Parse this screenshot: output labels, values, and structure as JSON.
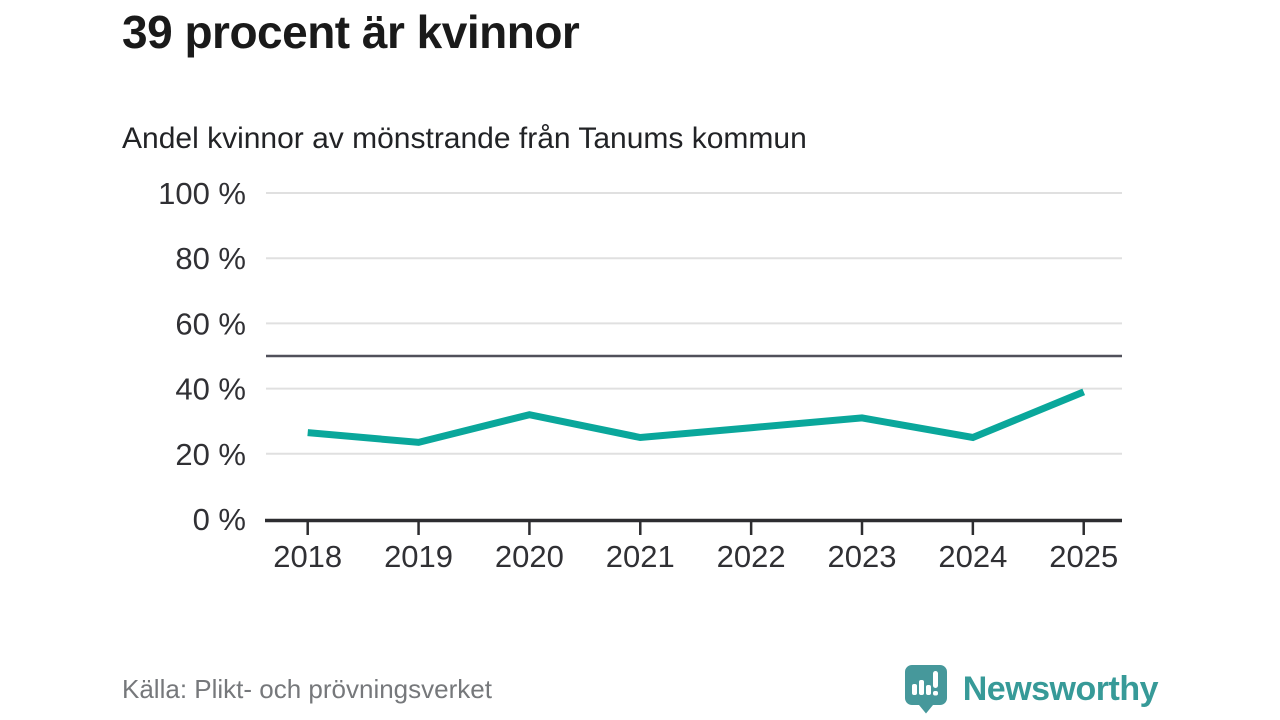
{
  "header": {
    "title": "39 procent är kvinnor",
    "subtitle": "Andel kvinnor av mönstrande från Tanums kommun"
  },
  "chart_data": {
    "type": "line",
    "title": "39 procent är kvinnor",
    "subtitle": "Andel kvinnor av mönstrande från Tanums kommun",
    "categories": [
      "2018",
      "2019",
      "2020",
      "2021",
      "2022",
      "2023",
      "2024",
      "2025"
    ],
    "series": [
      {
        "name": "Andel kvinnor av mönstrande",
        "values": [
          26.5,
          23.5,
          32,
          25,
          28,
          31,
          25,
          39
        ]
      }
    ],
    "unit": "%",
    "xlabel": "",
    "ylabel": "",
    "ylim": [
      0,
      100
    ],
    "yticks": [
      {
        "value": 0,
        "label": "0 %"
      },
      {
        "value": 20,
        "label": "20 %"
      },
      {
        "value": 40,
        "label": "40 %"
      },
      {
        "value": 60,
        "label": "60 %"
      },
      {
        "value": 80,
        "label": "80 %"
      },
      {
        "value": 100,
        "label": "100 %"
      }
    ],
    "reference_line": 50,
    "grid": true,
    "legend": false,
    "colors": {
      "line": "#0aa79b",
      "gridline": "#e0e0e0",
      "reference_line": "#50505a",
      "axis": "#2d2d30",
      "tick_label": "#303034"
    }
  },
  "footer": {
    "source": "Källa: Plikt- och prövningsverket",
    "brand": {
      "name": "Newsworthy",
      "word_color": "#379a98",
      "icon": "newsworthy-chart-bubble-icon",
      "icon_color": "#46989b"
    }
  }
}
